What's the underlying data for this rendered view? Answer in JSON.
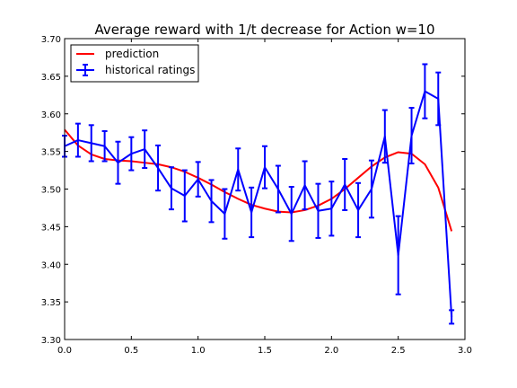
{
  "chart_data": {
    "type": "line",
    "title": "Average reward with 1/t decrease for Action w=10",
    "xlabel": "",
    "ylabel": "",
    "xlim": [
      0.0,
      3.0
    ],
    "ylim": [
      3.3,
      3.7
    ],
    "xticks": [
      "0.0",
      "0.5",
      "1.0",
      "1.5",
      "2.0",
      "2.5",
      "3.0"
    ],
    "yticks": [
      "3.30",
      "3.35",
      "3.40",
      "3.45",
      "3.50",
      "3.55",
      "3.60",
      "3.65",
      "3.70"
    ],
    "grid": false,
    "legend_position": "top-left",
    "series": [
      {
        "name": "prediction",
        "color": "#ff0000",
        "x": [
          0.0,
          0.1,
          0.2,
          0.3,
          0.4,
          0.5,
          0.6,
          0.7,
          0.8,
          0.9,
          1.0,
          1.1,
          1.2,
          1.3,
          1.4,
          1.5,
          1.6,
          1.7,
          1.8,
          1.9,
          2.0,
          2.1,
          2.2,
          2.3,
          2.4,
          2.5,
          2.6,
          2.7,
          2.8,
          2.9
        ],
        "y": [
          3.579,
          3.558,
          3.546,
          3.54,
          3.538,
          3.537,
          3.535,
          3.533,
          3.529,
          3.523,
          3.515,
          3.506,
          3.496,
          3.487,
          3.479,
          3.474,
          3.47,
          3.469,
          3.472,
          3.478,
          3.487,
          3.5,
          3.515,
          3.53,
          3.542,
          3.549,
          3.547,
          3.533,
          3.502,
          3.444
        ]
      },
      {
        "name": "historical ratings",
        "color": "#0000ff",
        "x": [
          0.0,
          0.1,
          0.2,
          0.3,
          0.4,
          0.5,
          0.6,
          0.7,
          0.8,
          0.9,
          1.0,
          1.1,
          1.2,
          1.3,
          1.4,
          1.5,
          1.6,
          1.7,
          1.8,
          1.9,
          2.0,
          2.1,
          2.2,
          2.3,
          2.4,
          2.5,
          2.6,
          2.7,
          2.8,
          2.9
        ],
        "y": [
          3.557,
          3.565,
          3.561,
          3.557,
          3.535,
          3.547,
          3.553,
          3.528,
          3.501,
          3.491,
          3.513,
          3.484,
          3.467,
          3.526,
          3.469,
          3.529,
          3.5,
          3.467,
          3.505,
          3.471,
          3.474,
          3.506,
          3.472,
          3.5,
          3.57,
          3.412,
          3.571,
          3.63,
          3.62,
          3.33
        ],
        "err": [
          0.014,
          0.022,
          0.024,
          0.02,
          0.028,
          0.022,
          0.025,
          0.03,
          0.028,
          0.034,
          0.023,
          0.028,
          0.033,
          0.028,
          0.033,
          0.028,
          0.031,
          0.036,
          0.032,
          0.036,
          0.036,
          0.034,
          0.036,
          0.038,
          0.035,
          0.052,
          0.037,
          0.036,
          0.035,
          0.009
        ]
      }
    ]
  }
}
